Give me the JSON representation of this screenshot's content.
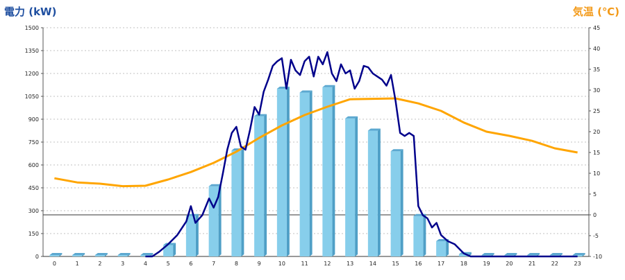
{
  "chart_data": {
    "type": "bar",
    "left_axis_title": "電力 (kW)",
    "right_axis_title": "気温 (℃)",
    "categories": [
      "0",
      "1",
      "2",
      "3",
      "4",
      "5",
      "6",
      "7",
      "8",
      "9",
      "10",
      "11",
      "12",
      "13",
      "14",
      "15",
      "16",
      "17",
      "18",
      "19",
      "20",
      "21",
      "22",
      "23"
    ],
    "left_ylim": [
      0,
      1500
    ],
    "left_ticks": [
      "0",
      "150",
      "300",
      "450",
      "600",
      "750",
      "900",
      "1050",
      "1200",
      "1350",
      "1500"
    ],
    "right_ylim": [
      -10,
      45
    ],
    "right_ticks": [
      "-10",
      "-5",
      "0",
      "5",
      "10",
      "15",
      "20",
      "25",
      "30",
      "35",
      "40",
      "45"
    ],
    "grid": true,
    "bar_values": [
      0,
      0,
      0,
      0,
      0,
      75,
      265,
      460,
      695,
      920,
      1100,
      1075,
      1110,
      905,
      825,
      690,
      265,
      100,
      15,
      0,
      0,
      0,
      0,
      0
    ],
    "power_line": {
      "x": [
        4,
        4.3,
        4.6,
        5,
        5.4,
        5.8,
        6,
        6.2,
        6.5,
        6.8,
        7,
        7.2,
        7.4,
        7.6,
        7.8,
        8,
        8.2,
        8.4,
        8.6,
        8.8,
        9,
        9.2,
        9.4,
        9.6,
        9.8,
        10,
        10.2,
        10.4,
        10.6,
        10.8,
        11,
        11.2,
        11.4,
        11.6,
        11.8,
        12,
        12.2,
        12.4,
        12.6,
        12.8,
        13,
        13.2,
        13.4,
        13.6,
        13.8,
        14,
        14.2,
        14.4,
        14.6,
        14.8,
        15,
        15.2,
        15.4,
        15.6,
        15.8,
        16,
        16.2,
        16.4,
        16.6,
        16.8,
        17,
        17.3,
        17.6,
        18,
        18.3,
        19,
        20,
        21,
        22,
        23
      ],
      "values": [
        0,
        0,
        30,
        80,
        140,
        230,
        330,
        220,
        270,
        380,
        320,
        390,
        540,
        700,
        810,
        850,
        720,
        700,
        830,
        980,
        930,
        1080,
        1160,
        1250,
        1280,
        1300,
        1100,
        1290,
        1220,
        1190,
        1280,
        1310,
        1180,
        1310,
        1260,
        1340,
        1200,
        1150,
        1260,
        1200,
        1220,
        1100,
        1150,
        1250,
        1240,
        1200,
        1180,
        1160,
        1120,
        1190,
        1020,
        810,
        790,
        810,
        790,
        330,
        270,
        250,
        190,
        220,
        140,
        100,
        80,
        20,
        0,
        0,
        0,
        0,
        0,
        0
      ]
    },
    "temperature_series": {
      "x": [
        0,
        1,
        2,
        3,
        4,
        5,
        6,
        7,
        8,
        9,
        10,
        11,
        12,
        13,
        14,
        15,
        16,
        17,
        18,
        19,
        20,
        21,
        22,
        23
      ],
      "values": [
        8.8,
        7.8,
        7.5,
        6.9,
        7.0,
        8.5,
        10.3,
        12.5,
        15.2,
        18.5,
        21.5,
        24.0,
        26.0,
        27.8,
        27.9,
        28.0,
        26.8,
        25.0,
        22.2,
        20.0,
        19.0,
        17.8,
        16.0,
        15.0
      ]
    },
    "colors": {
      "bars": "#87ceeb",
      "bar_side": "#4f9fc6",
      "bar_top": "#5ca8d0",
      "power_line": "#00008b",
      "temperature_line": "#ffa500",
      "left_title": "#1f4fa0",
      "right_title": "#f39a19",
      "grid": "#c0c0c0",
      "zero_temp_line": "#333333"
    }
  }
}
